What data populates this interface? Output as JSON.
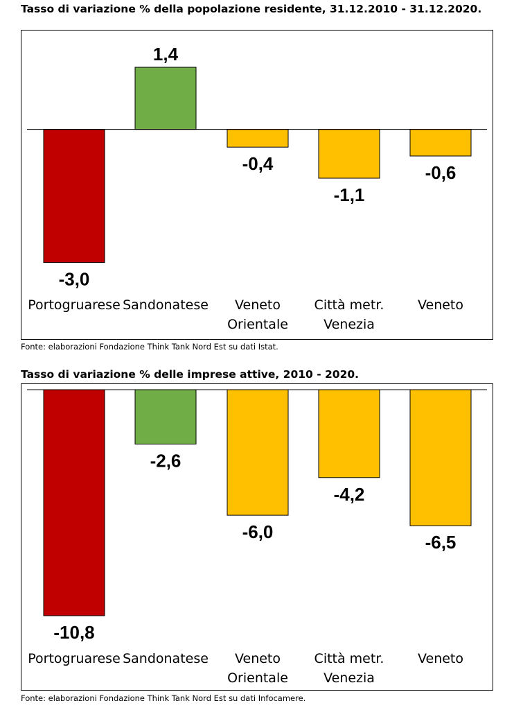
{
  "charts": [
    {
      "title": "Tasso di variazione % della popolazione residente, 31.12.2010 - 31.12.2020.",
      "source": "Fonte: elaborazioni Fondazione Think Tank Nord Est su dati Istat."
    },
    {
      "title": "Tasso di variazione % delle imprese attive, 2010 - 2020.",
      "source": "Fonte: elaborazioni Fondazione Think Tank Nord Est su dati Infocamere."
    }
  ],
  "colors": {
    "red": "#C00000",
    "green": "#70AD47",
    "amber": "#FFC000"
  },
  "chart_data": [
    {
      "type": "bar",
      "title": "Tasso di variazione % della popolazione residente, 31.12.2010 - 31.12.2020.",
      "categories": [
        [
          "Portogruarese"
        ],
        [
          "Sandonatese"
        ],
        [
          "Veneto",
          "Orientale"
        ],
        [
          "Città metr.",
          "Venezia"
        ],
        [
          "Veneto"
        ]
      ],
      "values": [
        -3.0,
        1.4,
        -0.4,
        -1.1,
        -0.6
      ],
      "data_labels": [
        "-3,0",
        "1,4",
        "-0,4",
        "-1,1",
        "-0,6"
      ],
      "bar_colors": [
        "#C00000",
        "#70AD47",
        "#FFC000",
        "#FFC000",
        "#FFC000"
      ],
      "ylim": [
        -3.1,
        1.4
      ],
      "grid": false,
      "legend": "none"
    },
    {
      "type": "bar",
      "title": "Tasso di variazione % delle imprese attive, 2010 - 2020.",
      "categories": [
        [
          "Portogruarese"
        ],
        [
          "Sandonatese"
        ],
        [
          "Veneto",
          "Orientale"
        ],
        [
          "Città metr.",
          "Venezia"
        ],
        [
          "Veneto"
        ]
      ],
      "values": [
        -10.8,
        -2.6,
        -6.0,
        -4.2,
        -6.5
      ],
      "data_labels": [
        "-10,8",
        "-2,6",
        "-6,0",
        "-4,2",
        "-6,5"
      ],
      "bar_colors": [
        "#C00000",
        "#70AD47",
        "#FFC000",
        "#FFC000",
        "#FFC000"
      ],
      "ylim": [
        -10.8,
        0
      ],
      "grid": false,
      "legend": "none"
    }
  ]
}
